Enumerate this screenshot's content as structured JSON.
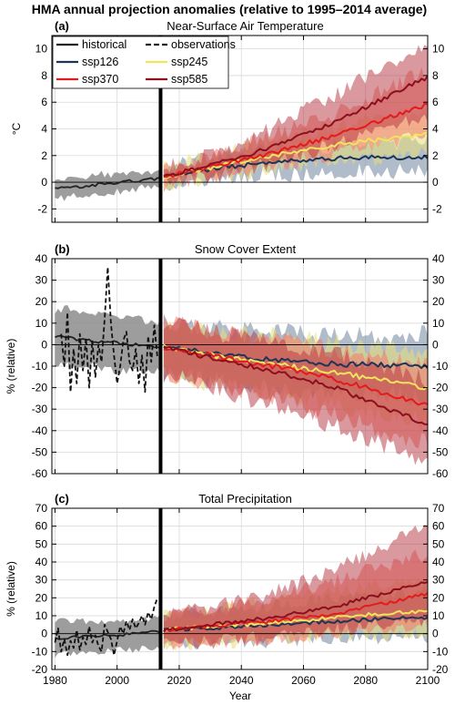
{
  "figure": {
    "title": "HMA annual projection anomalies (relative to 1995–2014 average)",
    "xlabel": "Year"
  },
  "legend": {
    "entries": [
      {
        "label": "historical",
        "color": "#222222",
        "style": "solid"
      },
      {
        "label": "observations",
        "color": "#222222",
        "style": "dashed"
      },
      {
        "label": "ssp126",
        "color": "#1d3557",
        "style": "solid"
      },
      {
        "label": "ssp245",
        "color": "#f2e45c",
        "style": "solid"
      },
      {
        "label": "ssp370",
        "color": "#e41a1c",
        "style": "solid"
      },
      {
        "label": "ssp585",
        "color": "#8b0f1f",
        "style": "solid"
      }
    ]
  },
  "colors": {
    "historical": "#222222",
    "historical_band": "#8c8c8c",
    "observations": "#111111",
    "ssp126": "#1d3557",
    "ssp126_band": "#7d8fa8",
    "ssp245": "#f2e45c",
    "ssp245_band": "#e8dc78",
    "ssp370": "#e41a1c",
    "ssp370_band": "#f07a6a",
    "ssp585": "#8b0f1f",
    "ssp585_band": "#b5323f",
    "scenario_divider": "#000000"
  },
  "chart_data": [
    {
      "type": "line",
      "label": "(a)",
      "title": "Near-Surface Air Temperature",
      "ylabel": "°C",
      "xlim": [
        1979,
        2100
      ],
      "ylim": [
        -3,
        11
      ],
      "xticks": [
        1980,
        2000,
        2020,
        2040,
        2060,
        2080,
        2100
      ],
      "yticks": [
        -2,
        0,
        2,
        4,
        6,
        8,
        10
      ],
      "grid": true,
      "zero_line": true,
      "divider_year": 2014,
      "legend_position": "top-left",
      "historical": {
        "x": [
          1980,
          1985,
          1990,
          1995,
          2000,
          2005,
          2010,
          2014
        ],
        "mean": [
          -0.5,
          -0.4,
          -0.35,
          -0.1,
          -0.05,
          0.1,
          0.2,
          0.3
        ],
        "low": [
          -1.2,
          -1.1,
          -1.0,
          -0.8,
          -0.7,
          -0.5,
          -0.4,
          -0.3
        ],
        "high": [
          0.1,
          0.3,
          0.3,
          0.6,
          0.6,
          0.7,
          0.8,
          0.9
        ]
      },
      "observations": {
        "x": [],
        "y": []
      },
      "scenarios": [
        {
          "name": "ssp126",
          "x": [
            2015,
            2030,
            2050,
            2070,
            2100
          ],
          "mean": [
            0.4,
            1.0,
            1.5,
            1.8,
            1.9
          ],
          "low": [
            -0.2,
            0.3,
            0.6,
            0.8,
            0.8
          ],
          "high": [
            1.0,
            1.8,
            2.4,
            2.8,
            3.0
          ]
        },
        {
          "name": "ssp245",
          "x": [
            2015,
            2030,
            2050,
            2070,
            2100
          ],
          "mean": [
            0.4,
            1.1,
            2.0,
            2.8,
            3.6
          ],
          "low": [
            -0.2,
            0.4,
            1.0,
            1.6,
            2.2
          ],
          "high": [
            1.0,
            1.9,
            3.1,
            4.2,
            5.4
          ]
        },
        {
          "name": "ssp370",
          "x": [
            2015,
            2030,
            2050,
            2070,
            2100
          ],
          "mean": [
            0.4,
            1.1,
            2.2,
            3.5,
            5.8
          ],
          "low": [
            -0.2,
            0.4,
            1.2,
            2.2,
            3.5
          ],
          "high": [
            1.0,
            2.0,
            3.5,
            5.2,
            8.4
          ]
        },
        {
          "name": "ssp585",
          "x": [
            2015,
            2030,
            2050,
            2070,
            2100
          ],
          "mean": [
            0.4,
            1.3,
            2.6,
            4.5,
            7.9
          ],
          "low": [
            -0.2,
            0.5,
            1.4,
            2.8,
            5.0
          ],
          "high": [
            1.0,
            2.1,
            4.0,
            6.6,
            10.2
          ]
        }
      ]
    },
    {
      "type": "line",
      "label": "(b)",
      "title": "Snow Cover Extent",
      "ylabel": "% (relative)",
      "xlim": [
        1979,
        2100
      ],
      "ylim": [
        -60,
        40
      ],
      "xticks": [
        1980,
        2000,
        2020,
        2040,
        2060,
        2080,
        2100
      ],
      "yticks": [
        -60,
        -50,
        -40,
        -30,
        -20,
        -10,
        0,
        10,
        20,
        30,
        40
      ],
      "grid": true,
      "zero_line": true,
      "divider_year": 2014,
      "historical": {
        "x": [
          1980,
          1985,
          1990,
          1995,
          2000,
          2005,
          2010,
          2014
        ],
        "mean": [
          4,
          3,
          2,
          1.5,
          1,
          0,
          -1,
          -1
        ],
        "low": [
          -8,
          -10,
          -10,
          -11,
          -12,
          -12,
          -12,
          -13
        ],
        "high": [
          16,
          17,
          15,
          14,
          14,
          12,
          11,
          10
        ]
      },
      "observations": {
        "x": [
          1982,
          1983,
          1984,
          1985,
          1986,
          1987,
          1988,
          1989,
          1990,
          1991,
          1992,
          1993,
          1994,
          1995,
          1996,
          1997,
          1998,
          1999,
          2000,
          2001,
          2002,
          2003,
          2004,
          2005,
          2006,
          2007,
          2008,
          2009,
          2010,
          2011,
          2012,
          2013
        ],
        "y": [
          5,
          -10,
          15,
          -22,
          -2,
          -18,
          5,
          -12,
          3,
          -20,
          2,
          -15,
          0,
          -8,
          12,
          36,
          10,
          -5,
          -18,
          -10,
          2,
          6,
          -8,
          -12,
          -2,
          -18,
          -5,
          -22,
          4,
          -8,
          9,
          -6
        ]
      },
      "scenarios": [
        {
          "name": "ssp126",
          "x": [
            2015,
            2030,
            2050,
            2070,
            2100
          ],
          "mean": [
            -1,
            -4,
            -7,
            -9,
            -10
          ],
          "low": [
            -14,
            -17,
            -21,
            -22,
            -24
          ],
          "high": [
            10,
            8,
            6,
            4,
            5
          ]
        },
        {
          "name": "ssp245",
          "x": [
            2015,
            2030,
            2050,
            2070,
            2100
          ],
          "mean": [
            -1,
            -5,
            -9,
            -13,
            -20
          ],
          "low": [
            -14,
            -18,
            -23,
            -28,
            -36
          ],
          "high": [
            10,
            7,
            4,
            1,
            -4
          ]
        },
        {
          "name": "ssp370",
          "x": [
            2015,
            2030,
            2050,
            2070,
            2100
          ],
          "mean": [
            -1,
            -5,
            -10,
            -16,
            -28
          ],
          "low": [
            -14,
            -18,
            -25,
            -33,
            -46
          ],
          "high": [
            10,
            7,
            3,
            -2,
            -10
          ]
        },
        {
          "name": "ssp585",
          "x": [
            2015,
            2030,
            2050,
            2070,
            2100
          ],
          "mean": [
            -1,
            -6,
            -12,
            -20,
            -37
          ],
          "low": [
            -14,
            -19,
            -28,
            -38,
            -55
          ],
          "high": [
            10,
            6,
            2,
            -5,
            -16
          ]
        }
      ]
    },
    {
      "type": "line",
      "label": "(c)",
      "title": "Total Precipitation",
      "ylabel": "% (relative)",
      "xlim": [
        1979,
        2100
      ],
      "ylim": [
        -20,
        70
      ],
      "xticks": [
        1980,
        2000,
        2020,
        2040,
        2060,
        2080,
        2100
      ],
      "yticks": [
        -20,
        -10,
        0,
        10,
        20,
        30,
        40,
        50,
        60,
        70
      ],
      "grid": true,
      "zero_line": true,
      "divider_year": 2014,
      "historical": {
        "x": [
          1980,
          1985,
          1990,
          1995,
          2000,
          2005,
          2010,
          2014
        ],
        "mean": [
          -3,
          -2,
          -1.5,
          -1,
          -1,
          0,
          1,
          1
        ],
        "low": [
          -12,
          -11,
          -10,
          -10,
          -9,
          -9,
          -8,
          -8
        ],
        "high": [
          7,
          7,
          7,
          6,
          7,
          7,
          8,
          9
        ]
      },
      "observations": {
        "x": [
          1980,
          1981,
          1982,
          1983,
          1984,
          1985,
          1986,
          1987,
          1988,
          1989,
          1990,
          1991,
          1992,
          1993,
          1994,
          1995,
          1996,
          1997,
          1998,
          1999,
          2000,
          2001,
          2002,
          2003,
          2004,
          2005,
          2006,
          2007,
          2008,
          2009,
          2010,
          2011,
          2012,
          2013
        ],
        "y": [
          -5,
          3,
          -10,
          -3,
          -12,
          -4,
          -8,
          2,
          -9,
          -2,
          -6,
          4,
          -5,
          -1,
          -7,
          -10,
          5,
          1,
          -3,
          -12,
          -4,
          4,
          0,
          7,
          2,
          8,
          3,
          6,
          10,
          5,
          12,
          8,
          15,
          20
        ]
      },
      "scenarios": [
        {
          "name": "ssp126",
          "x": [
            2015,
            2030,
            2050,
            2070,
            2100
          ],
          "mean": [
            2,
            3,
            5,
            7,
            9
          ],
          "low": [
            -6,
            -5,
            -4,
            -3,
            -2
          ],
          "high": [
            10,
            12,
            16,
            20,
            24
          ]
        },
        {
          "name": "ssp245",
          "x": [
            2015,
            2030,
            2050,
            2070,
            2100
          ],
          "mean": [
            2,
            4,
            6,
            9,
            13
          ],
          "low": [
            -6,
            -5,
            -3,
            -2,
            0
          ],
          "high": [
            10,
            13,
            18,
            24,
            30
          ]
        },
        {
          "name": "ssp370",
          "x": [
            2015,
            2030,
            2050,
            2070,
            2100
          ],
          "mean": [
            2,
            4,
            7,
            11,
            22
          ],
          "low": [
            -6,
            -5,
            -3,
            0,
            5
          ],
          "high": [
            10,
            14,
            20,
            30,
            45
          ]
        },
        {
          "name": "ssp585",
          "x": [
            2015,
            2030,
            2050,
            2070,
            2100
          ],
          "mean": [
            2,
            5,
            9,
            15,
            29
          ],
          "low": [
            -6,
            -4,
            -2,
            2,
            8
          ],
          "high": [
            10,
            15,
            23,
            36,
            60
          ]
        }
      ]
    }
  ]
}
